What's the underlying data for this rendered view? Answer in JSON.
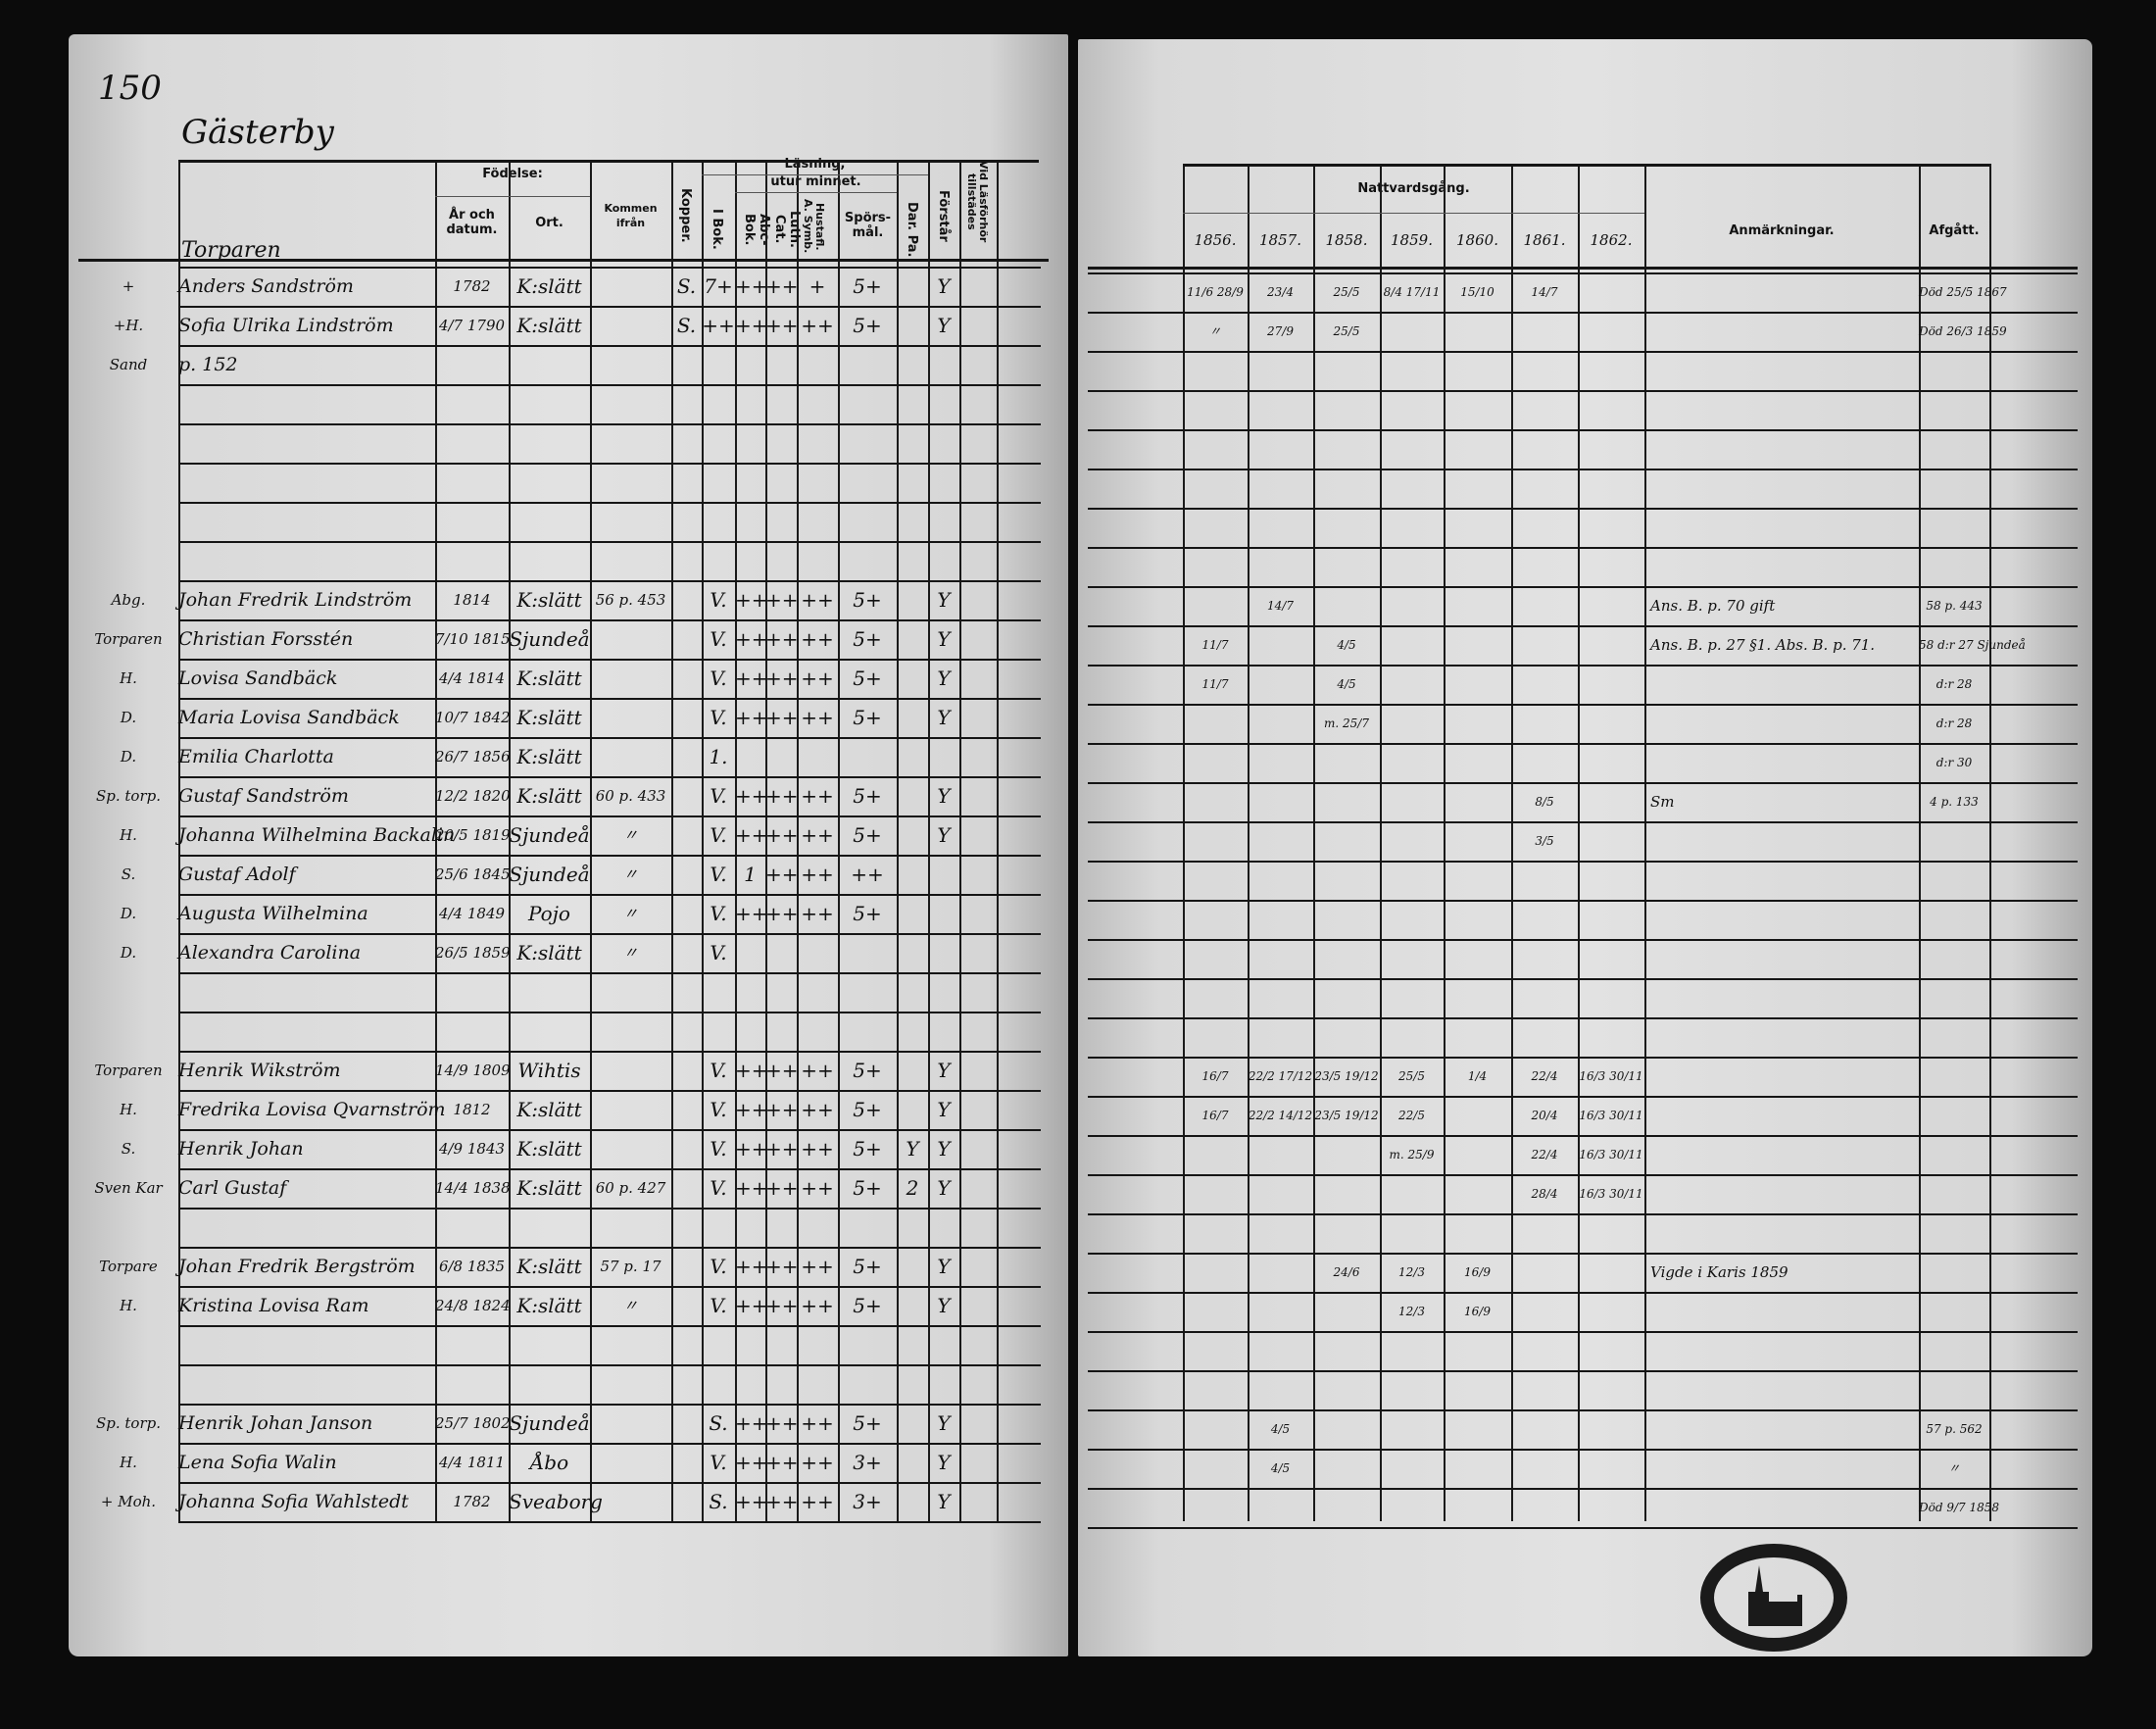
{
  "left": {
    "page_number": "150",
    "village": "Gästerby",
    "section": "Torparen",
    "headers": {
      "fodelse": "Födelse:",
      "ar": "År och datum.",
      "ort": "Ort.",
      "kommen": "Kommen ifrån",
      "kopper": "Kopper.",
      "lasning": "Läsning,",
      "utur_minnet": "utur minnet.",
      "i_bok": "I Bok.",
      "abc_bok": "Abc-Bok.",
      "luth_cat": "Luth. Cat.",
      "symb": "Hustafl. A. Symb.",
      "sporsmal": "Spörs-mål.",
      "dar_pa": "Dar. Pa.",
      "forstar": "Förstår",
      "lasforhor": "Vid Läsförhör tillstädes"
    }
  },
  "right": {
    "headers": {
      "nattvard": "Nattvardsgång.",
      "years": [
        "1856.",
        "1857.",
        "1858.",
        "1859.",
        "1860.",
        "1861.",
        "1862."
      ],
      "anmarkningar": "Anmärkningar.",
      "afgatt": "Afgått."
    }
  },
  "rows": [
    {
      "mark": "+",
      "name": "Anders Sandström",
      "birth": "1782",
      "place": "K:slätt",
      "kopp": "S.",
      "bok": "7+",
      "abc": "++",
      "luth": "++",
      "symb": "+",
      "spors": "5+",
      "forstar": "Y",
      "c": [
        "11/6 28/9",
        "23/4",
        "25/5",
        "8/4 17/11",
        "15/10",
        "14/7",
        ""
      ],
      "afgatt": "Död 25/5 1867"
    },
    {
      "mark": "+H.",
      "name": "Sofia Ulrika Lindström",
      "birth": "4/7 1790",
      "place": "K:slätt",
      "kopp": "S.",
      "bok": "++",
      "abc": "++",
      "luth": "++",
      "symb": "++",
      "spors": "5+",
      "forstar": "Y",
      "c": [
        "〃",
        "27/9",
        "25/5",
        "",
        "",
        "",
        ""
      ],
      "afgatt": "Död 26/3 1859"
    },
    {
      "mark": "Sand",
      "name": "p. 152"
    },
    {},
    {},
    {},
    {},
    {},
    {
      "mark": "Abg.",
      "name": "Johan Fredrik Lindström",
      "birth": "1814",
      "place": "K:slätt",
      "from": "56 p. 453",
      "bok": "V.",
      "abc": "++",
      "luth": "++",
      "symb": "++",
      "spors": "5+",
      "forstar": "Y",
      "c": [
        "",
        "14/7",
        "",
        "",
        "",
        "",
        ""
      ],
      "remark": "Ans. B. p. 70 gift",
      "afgatt": "58 p. 443"
    },
    {
      "mark": "Torparen",
      "name": "Christian Forsstén",
      "birth": "7/10 1815",
      "place": "Sjundeå",
      "bok": "V.",
      "abc": "++",
      "luth": "++",
      "symb": "++",
      "spors": "5+",
      "forstar": "Y",
      "c": [
        "11/7",
        "",
        "4/5",
        "",
        "",
        "",
        ""
      ],
      "remark": "Ans. B. p. 27 §1.   Abs. B. p. 71.",
      "afgatt": "58 d:r 27 Sjundeå"
    },
    {
      "mark": "H.",
      "name": "Lovisa Sandbäck",
      "birth": "4/4 1814",
      "place": "K:slätt",
      "bok": "V.",
      "abc": "++",
      "luth": "++",
      "symb": "++",
      "spors": "5+",
      "forstar": "Y",
      "c": [
        "11/7",
        "",
        "4/5",
        "",
        "",
        "",
        ""
      ],
      "afgatt": "d:r 28"
    },
    {
      "mark": "D.",
      "name": "Maria Lovisa Sandbäck",
      "birth": "10/7 1842",
      "place": "K:slätt",
      "bok": "V.",
      "abc": "++",
      "luth": "++",
      "symb": "++",
      "spors": "5+",
      "forstar": "Y",
      "c": [
        "",
        "",
        "m. 25/7",
        "",
        "",
        "",
        ""
      ],
      "afgatt": "d:r 28"
    },
    {
      "mark": "D.",
      "name": "Emilia Charlotta",
      "birth": "26/7 1856",
      "place": "K:slätt",
      "bok": "1.",
      "afgatt": "d:r 30"
    },
    {
      "mark": "Sp. torp.",
      "name": "Gustaf Sandström",
      "birth": "12/2 1820",
      "place": "K:slätt",
      "from": "60 p. 433",
      "bok": "V.",
      "abc": "++",
      "luth": "++",
      "symb": "++",
      "spors": "5+",
      "forstar": "Y",
      "c": [
        "",
        "",
        "",
        "",
        "",
        "8/5",
        ""
      ],
      "remark": "Sm",
      "afgatt": "4 p. 133"
    },
    {
      "mark": "H.",
      "name": "Johanna Wilhelmina Backalin",
      "birth": "20/5 1819",
      "place": "Sjundeå",
      "from": "〃",
      "bok": "V.",
      "abc": "++",
      "luth": "++",
      "symb": "++",
      "spors": "5+",
      "forstar": "Y",
      "c": [
        "",
        "",
        "",
        "",
        "",
        "3/5",
        ""
      ]
    },
    {
      "mark": "S.",
      "name": "Gustaf Adolf",
      "birth": "25/6 1845",
      "place": "Sjundeå",
      "from": "〃",
      "bok": "V.",
      "abc": "1",
      "luth": "++",
      "symb": "++",
      "spors": "++"
    },
    {
      "mark": "D.",
      "name": "Augusta Wilhelmina",
      "birth": "4/4 1849",
      "place": "Pojo",
      "from": "〃",
      "bok": "V.",
      "abc": "++",
      "luth": "++",
      "symb": "++",
      "spors": "5+"
    },
    {
      "mark": "D.",
      "name": "Alexandra Carolina",
      "birth": "26/5 1859",
      "place": "K:slätt",
      "from": "〃",
      "bok": "V."
    },
    {},
    {},
    {
      "mark": "Torparen",
      "name": "Henrik Wikström",
      "birth": "14/9 1809",
      "place": "Wihtis",
      "bok": "V.",
      "abc": "++",
      "luth": "++",
      "symb": "++",
      "spors": "5+",
      "forstar": "Y",
      "c": [
        "16/7",
        "22/2 17/12",
        "23/5 19/12",
        "25/5",
        "1/4",
        "22/4",
        "16/3 30/11"
      ]
    },
    {
      "mark": "H.",
      "name": "Fredrika Lovisa Qvarnström",
      "birth": "1812",
      "place": "K:slätt",
      "bok": "V.",
      "abc": "++",
      "luth": "++",
      "symb": "++",
      "spors": "5+",
      "forstar": "Y",
      "c": [
        "16/7",
        "22/2 14/12",
        "23/5 19/12",
        "22/5",
        "",
        "20/4",
        "16/3 30/11"
      ]
    },
    {
      "mark": "S.",
      "name": "Henrik Johan",
      "birth": "4/9 1843",
      "place": "K:slätt",
      "bok": "V.",
      "abc": "++",
      "luth": "++",
      "symb": "++",
      "spors": "5+",
      "dar": "Y",
      "forstar": "Y",
      "c": [
        "",
        "",
        "",
        "m. 25/9",
        "",
        "22/4",
        "16/3 30/11"
      ]
    },
    {
      "mark": "Sven Kar",
      "name": "Carl Gustaf",
      "birth": "14/4 1838",
      "place": "K:slätt",
      "from": "60 p. 427",
      "bok": "V.",
      "abc": "++",
      "luth": "++",
      "symb": "++",
      "spors": "5+",
      "dar": "2",
      "forstar": "Y",
      "c": [
        "",
        "",
        "",
        "",
        "",
        "28/4",
        "16/3 30/11"
      ]
    },
    {},
    {
      "mark": "Torpare",
      "name": "Johan Fredrik Bergström",
      "birth": "6/8 1835",
      "place": "K:slätt",
      "from": "57 p. 17",
      "bok": "V.",
      "abc": "++",
      "luth": "++",
      "symb": "++",
      "spors": "5+",
      "forstar": "Y",
      "c": [
        "",
        "",
        "24/6",
        "12/3",
        "16/9",
        "",
        ""
      ],
      "remark": "Vigde i Karis 1859"
    },
    {
      "mark": "H.",
      "name": "Kristina Lovisa Ram",
      "birth": "24/8 1824",
      "place": "K:slätt",
      "from": "〃",
      "bok": "V.",
      "abc": "++",
      "luth": "++",
      "symb": "++",
      "spors": "5+",
      "forstar": "Y",
      "c": [
        "",
        "",
        "",
        "12/3",
        "16/9",
        "",
        ""
      ]
    },
    {},
    {},
    {
      "mark": "Sp. torp.",
      "name": "Henrik Johan Janson",
      "birth": "25/7 1802",
      "place": "Sjundeå",
      "kopp": "",
      "bok": "S.",
      "abc": "++",
      "luth": "++",
      "symb": "++",
      "spors": "5+",
      "forstar": "Y",
      "c": [
        "",
        "4/5",
        "",
        "",
        "",
        "",
        ""
      ],
      "afgatt": "57 p. 562"
    },
    {
      "mark": "H.",
      "name": "Lena Sofia Walin",
      "birth": "4/4 1811",
      "place": "Åbo",
      "bok": "V.",
      "abc": "++",
      "luth": "++",
      "symb": "++",
      "spors": "3+",
      "forstar": "Y",
      "c": [
        "",
        "4/5",
        "",
        "",
        "",
        "",
        ""
      ],
      "afgatt": "〃"
    },
    {
      "mark": "+ Moh.",
      "name": "Johanna Sofia Wahlstedt",
      "birth": "1782",
      "place": "Sveaborg",
      "bok": "S.",
      "abc": "++",
      "luth": "++",
      "symb": "++",
      "spors": "3+",
      "forstar": "Y",
      "afgatt": "Död 9/7 1858"
    }
  ],
  "stamp": {
    "icon": "church-seal-stamp"
  },
  "colors": {
    "ink": "#111111",
    "paper": "#dcdcdc",
    "background": "#0b0b0b"
  }
}
